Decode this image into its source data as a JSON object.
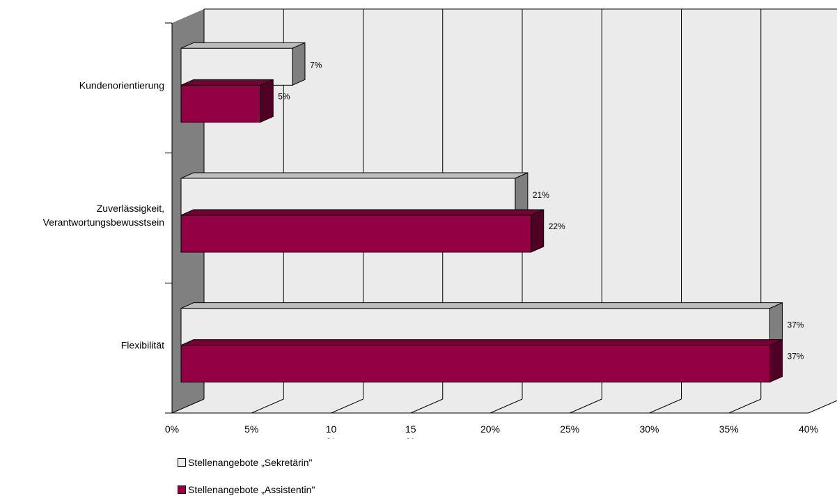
{
  "chart_data": {
    "type": "bar",
    "orientation": "horizontal",
    "three_d": true,
    "categories": [
      "Kundenorientierung",
      "Zuverlässigkeit, Verantwortungsbewusstsein",
      "Flexibilität"
    ],
    "category_lines": [
      [
        "Kundenorientierung"
      ],
      [
        "Zuverlässigkeit,",
        "Verantwortungsbewusstsein"
      ],
      [
        "Flexibilität"
      ]
    ],
    "series": [
      {
        "name": "Stellenangebote „Sekretärin\"",
        "values": [
          7,
          21,
          37
        ],
        "labels": [
          "7%",
          "21%",
          "37%"
        ],
        "color": "#ececec"
      },
      {
        "name": "Stellenangebote „Assistentin\"",
        "values": [
          5,
          22,
          37
        ],
        "labels": [
          "5%",
          "22%",
          "37%"
        ],
        "color": "#930044"
      }
    ],
    "xlim": [
      0,
      40
    ],
    "xticks": [
      {
        "value": 0,
        "lines": [
          "0%"
        ]
      },
      {
        "value": 5,
        "lines": [
          "5%"
        ]
      },
      {
        "value": 10,
        "lines": [
          "10",
          "%"
        ]
      },
      {
        "value": 15,
        "lines": [
          "15",
          "%"
        ]
      },
      {
        "value": 20,
        "lines": [
          "20%"
        ]
      },
      {
        "value": 25,
        "lines": [
          "25%"
        ]
      },
      {
        "value": 30,
        "lines": [
          "30%"
        ]
      },
      {
        "value": 35,
        "lines": [
          "35%"
        ]
      },
      {
        "value": 40,
        "lines": [
          "40%"
        ]
      }
    ],
    "grid": true,
    "legend_position": "bottom-left",
    "colors": {
      "wall": "#ebebeb",
      "side_wall": "#808080",
      "grid": "#000000"
    }
  }
}
